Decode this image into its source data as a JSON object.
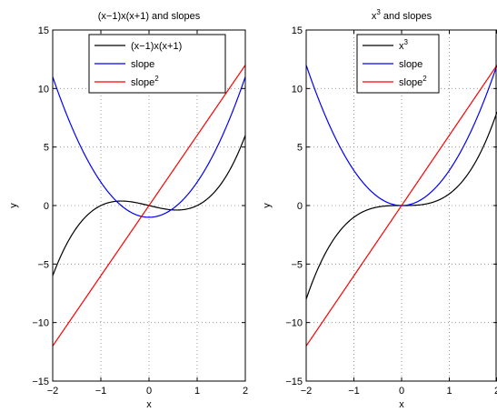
{
  "chart_data": [
    {
      "type": "line",
      "title": "(x−1)x(x+1) and slopes",
      "xlabel": "x",
      "ylabel": "y",
      "xlim": [
        -2,
        2
      ],
      "ylim": [
        -15,
        15
      ],
      "xticks": [
        "−2",
        "−1",
        "0",
        "1",
        "2"
      ],
      "yticks": [
        "−15",
        "−10",
        "−5",
        "0",
        "5",
        "10",
        "15"
      ],
      "grid": true,
      "legend_position": "top-right",
      "series": [
        {
          "name": "(x−1)x(x+1)",
          "name_base": "(x−1)x(x+1)",
          "name_sup": "",
          "color": "#000000",
          "expression": "x^3 - x",
          "x": [
            -2,
            -1.5,
            -1,
            -0.577,
            0,
            0.577,
            1,
            1.5,
            2
          ],
          "values": [
            -6,
            -1.875,
            0,
            0.385,
            0,
            -0.385,
            0,
            1.875,
            6
          ]
        },
        {
          "name": "slope",
          "name_base": "slope",
          "name_sup": "",
          "color": "#0000ff",
          "expression": "3x^2 - 1",
          "x": [
            -2,
            -1.5,
            -1,
            -0.5,
            0,
            0.5,
            1,
            1.5,
            2
          ],
          "values": [
            11,
            5.75,
            2,
            -0.25,
            -1,
            -0.25,
            2,
            5.75,
            11
          ]
        },
        {
          "name": "slope2",
          "name_base": "slope",
          "name_sup": "2",
          "color": "#ff0000",
          "expression": "6x",
          "x": [
            -2,
            2
          ],
          "values": [
            -12,
            12
          ]
        }
      ]
    },
    {
      "type": "line",
      "title_base": "x",
      "title_sup": "3",
      "title_rest": " and slopes",
      "xlabel": "x",
      "ylabel": "y",
      "xlim": [
        -2,
        2
      ],
      "ylim": [
        -15,
        15
      ],
      "xticks": [
        "−2",
        "−1",
        "0",
        "1",
        "2"
      ],
      "yticks": [
        "−15",
        "−10",
        "−5",
        "0",
        "5",
        "10",
        "15"
      ],
      "grid": true,
      "legend_position": "top-right",
      "series": [
        {
          "name": "x3",
          "name_base": "x",
          "name_sup": "3",
          "color": "#000000",
          "expression": "x^3",
          "x": [
            -2,
            -1.5,
            -1,
            -0.5,
            0,
            0.5,
            1,
            1.5,
            2
          ],
          "values": [
            -8,
            -3.375,
            -1,
            -0.125,
            0,
            0.125,
            1,
            3.375,
            8
          ]
        },
        {
          "name": "slope",
          "name_base": "slope",
          "name_sup": "",
          "color": "#0000ff",
          "expression": "3x^2",
          "x": [
            -2,
            -1.5,
            -1,
            -0.5,
            0,
            0.5,
            1,
            1.5,
            2
          ],
          "values": [
            12,
            6.75,
            3,
            0.75,
            0,
            0.75,
            3,
            6.75,
            12
          ]
        },
        {
          "name": "slope2",
          "name_base": "slope",
          "name_sup": "2",
          "color": "#ff0000",
          "expression": "6x",
          "x": [
            -2,
            2
          ],
          "values": [
            -12,
            12
          ]
        }
      ]
    }
  ]
}
